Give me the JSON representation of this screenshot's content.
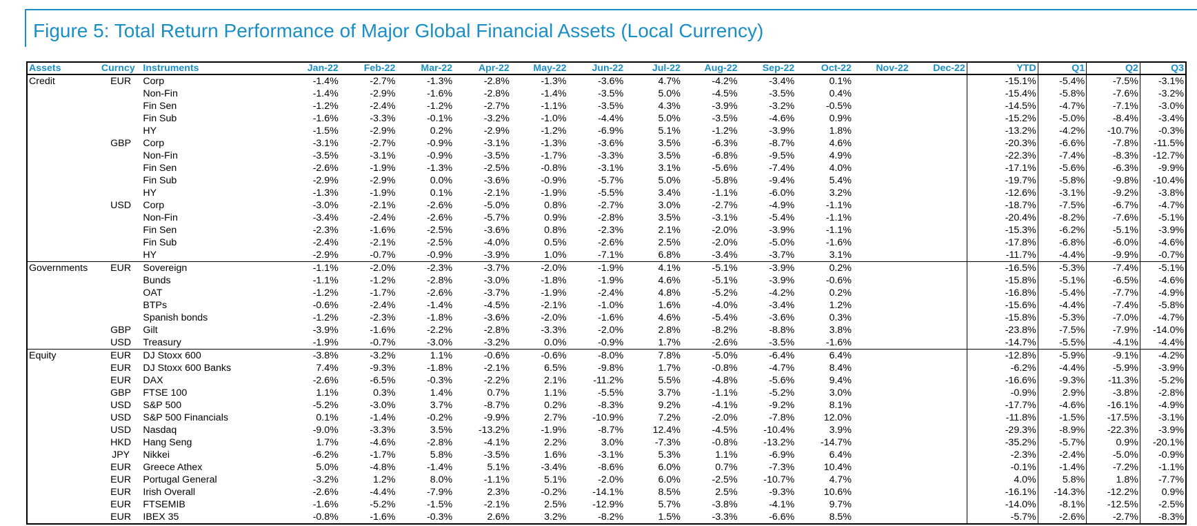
{
  "title": "Figure 5: Total Return Performance of Major Global Financial Assets (Local Currency)",
  "headers": {
    "assets": "Assets",
    "currency": "Curncy",
    "instruments": "Instruments",
    "months": [
      "Jan-22",
      "Feb-22",
      "Mar-22",
      "Apr-22",
      "May-22",
      "Jun-22",
      "Jul-22",
      "Aug-22",
      "Sep-22",
      "Oct-22",
      "Nov-22",
      "Dec-22"
    ],
    "ytd": "YTD",
    "quarters": [
      "Q1",
      "Q2",
      "Q3"
    ]
  },
  "rows": [
    {
      "asset": "Credit",
      "cur": "EUR",
      "inst": "Corp",
      "m": [
        "-1.4%",
        "-2.7%",
        "-1.3%",
        "-2.8%",
        "-1.3%",
        "-3.6%",
        "4.7%",
        "-4.2%",
        "-3.4%",
        "0.1%",
        "",
        ""
      ],
      "ytd": "-15.1%",
      "q": [
        "-5.4%",
        "-7.5%",
        "-3.1%"
      ]
    },
    {
      "asset": "",
      "cur": "",
      "inst": "Non-Fin",
      "m": [
        "-1.4%",
        "-2.9%",
        "-1.6%",
        "-2.8%",
        "-1.4%",
        "-3.5%",
        "5.0%",
        "-4.5%",
        "-3.5%",
        "0.4%",
        "",
        ""
      ],
      "ytd": "-15.4%",
      "q": [
        "-5.8%",
        "-7.6%",
        "-3.2%"
      ]
    },
    {
      "asset": "",
      "cur": "",
      "inst": "Fin Sen",
      "m": [
        "-1.2%",
        "-2.4%",
        "-1.2%",
        "-2.7%",
        "-1.1%",
        "-3.5%",
        "4.3%",
        "-3.9%",
        "-3.2%",
        "-0.5%",
        "",
        ""
      ],
      "ytd": "-14.5%",
      "q": [
        "-4.7%",
        "-7.1%",
        "-3.0%"
      ]
    },
    {
      "asset": "",
      "cur": "",
      "inst": "Fin Sub",
      "m": [
        "-1.6%",
        "-3.3%",
        "-0.1%",
        "-3.2%",
        "-1.0%",
        "-4.4%",
        "5.0%",
        "-3.5%",
        "-4.6%",
        "0.9%",
        "",
        ""
      ],
      "ytd": "-15.2%",
      "q": [
        "-5.0%",
        "-8.4%",
        "-3.4%"
      ]
    },
    {
      "asset": "",
      "cur": "",
      "inst": "HY",
      "m": [
        "-1.5%",
        "-2.9%",
        "0.2%",
        "-2.9%",
        "-1.2%",
        "-6.9%",
        "5.1%",
        "-1.2%",
        "-3.9%",
        "1.8%",
        "",
        ""
      ],
      "ytd": "-13.2%",
      "q": [
        "-4.2%",
        "-10.7%",
        "-0.3%"
      ]
    },
    {
      "asset": "",
      "cur": "GBP",
      "inst": "Corp",
      "m": [
        "-3.1%",
        "-2.7%",
        "-0.9%",
        "-3.1%",
        "-1.3%",
        "-3.6%",
        "3.5%",
        "-6.3%",
        "-8.7%",
        "4.6%",
        "",
        ""
      ],
      "ytd": "-20.3%",
      "q": [
        "-6.6%",
        "-7.8%",
        "-11.5%"
      ]
    },
    {
      "asset": "",
      "cur": "",
      "inst": "Non-Fin",
      "m": [
        "-3.5%",
        "-3.1%",
        "-0.9%",
        "-3.5%",
        "-1.7%",
        "-3.3%",
        "3.5%",
        "-6.8%",
        "-9.5%",
        "4.9%",
        "",
        ""
      ],
      "ytd": "-22.3%",
      "q": [
        "-7.4%",
        "-8.3%",
        "-12.7%"
      ]
    },
    {
      "asset": "",
      "cur": "",
      "inst": "Fin Sen",
      "m": [
        "-2.6%",
        "-1.9%",
        "-1.3%",
        "-2.5%",
        "-0.8%",
        "-3.1%",
        "3.1%",
        "-5.6%",
        "-7.4%",
        "4.0%",
        "",
        ""
      ],
      "ytd": "-17.1%",
      "q": [
        "-5.6%",
        "-6.3%",
        "-9.9%"
      ]
    },
    {
      "asset": "",
      "cur": "",
      "inst": "Fin Sub",
      "m": [
        "-2.9%",
        "-2.9%",
        "0.0%",
        "-3.6%",
        "-0.9%",
        "-5.7%",
        "5.0%",
        "-5.8%",
        "-9.4%",
        "5.4%",
        "",
        ""
      ],
      "ytd": "-19.7%",
      "q": [
        "-5.8%",
        "-9.8%",
        "-10.4%"
      ]
    },
    {
      "asset": "",
      "cur": "",
      "inst": "HY",
      "m": [
        "-1.3%",
        "-1.9%",
        "0.1%",
        "-2.1%",
        "-1.9%",
        "-5.5%",
        "3.4%",
        "-1.1%",
        "-6.0%",
        "3.2%",
        "",
        ""
      ],
      "ytd": "-12.6%",
      "q": [
        "-3.1%",
        "-9.2%",
        "-3.8%"
      ]
    },
    {
      "asset": "",
      "cur": "USD",
      "inst": "Corp",
      "m": [
        "-3.0%",
        "-2.1%",
        "-2.6%",
        "-5.0%",
        "0.8%",
        "-2.7%",
        "3.0%",
        "-2.7%",
        "-4.9%",
        "-1.1%",
        "",
        ""
      ],
      "ytd": "-18.7%",
      "q": [
        "-7.5%",
        "-6.7%",
        "-4.7%"
      ]
    },
    {
      "asset": "",
      "cur": "",
      "inst": "Non-Fin",
      "m": [
        "-3.4%",
        "-2.4%",
        "-2.6%",
        "-5.7%",
        "0.9%",
        "-2.8%",
        "3.5%",
        "-3.1%",
        "-5.4%",
        "-1.1%",
        "",
        ""
      ],
      "ytd": "-20.4%",
      "q": [
        "-8.2%",
        "-7.6%",
        "-5.1%"
      ]
    },
    {
      "asset": "",
      "cur": "",
      "inst": "Fin Sen",
      "m": [
        "-2.3%",
        "-1.6%",
        "-2.5%",
        "-3.6%",
        "0.8%",
        "-2.3%",
        "2.1%",
        "-2.0%",
        "-3.9%",
        "-1.1%",
        "",
        ""
      ],
      "ytd": "-15.3%",
      "q": [
        "-6.2%",
        "-5.1%",
        "-3.9%"
      ]
    },
    {
      "asset": "",
      "cur": "",
      "inst": "Fin Sub",
      "m": [
        "-2.4%",
        "-2.1%",
        "-2.5%",
        "-4.0%",
        "0.5%",
        "-2.6%",
        "2.5%",
        "-2.0%",
        "-5.0%",
        "-1.6%",
        "",
        ""
      ],
      "ytd": "-17.8%",
      "q": [
        "-6.8%",
        "-6.0%",
        "-4.6%"
      ]
    },
    {
      "asset": "",
      "cur": "",
      "inst": "HY",
      "m": [
        "-2.9%",
        "-0.7%",
        "-0.9%",
        "-3.9%",
        "1.0%",
        "-7.1%",
        "6.8%",
        "-3.4%",
        "-3.7%",
        "3.1%",
        "",
        ""
      ],
      "ytd": "-11.7%",
      "q": [
        "-4.4%",
        "-9.9%",
        "-0.7%"
      ],
      "end": true
    },
    {
      "asset": "Governments",
      "cur": "EUR",
      "inst": "Sovereign",
      "m": [
        "-1.1%",
        "-2.0%",
        "-2.3%",
        "-3.7%",
        "-2.0%",
        "-1.9%",
        "4.1%",
        "-5.1%",
        "-3.9%",
        "0.2%",
        "",
        ""
      ],
      "ytd": "-16.5%",
      "q": [
        "-5.3%",
        "-7.4%",
        "-5.1%"
      ]
    },
    {
      "asset": "",
      "cur": "",
      "inst": "Bunds",
      "m": [
        "-1.1%",
        "-1.2%",
        "-2.8%",
        "-3.0%",
        "-1.8%",
        "-1.9%",
        "4.6%",
        "-5.1%",
        "-3.9%",
        "-0.6%",
        "",
        ""
      ],
      "ytd": "-15.8%",
      "q": [
        "-5.1%",
        "-6.5%",
        "-4.6%"
      ]
    },
    {
      "asset": "",
      "cur": "",
      "inst": "OAT",
      "m": [
        "-1.2%",
        "-1.7%",
        "-2.6%",
        "-3.7%",
        "-1.9%",
        "-2.4%",
        "4.8%",
        "-5.2%",
        "-4.2%",
        "0.2%",
        "",
        ""
      ],
      "ytd": "-16.8%",
      "q": [
        "-5.4%",
        "-7.7%",
        "-4.9%"
      ]
    },
    {
      "asset": "",
      "cur": "",
      "inst": "BTPs",
      "m": [
        "-0.6%",
        "-2.4%",
        "-1.4%",
        "-4.5%",
        "-2.1%",
        "-1.0%",
        "1.6%",
        "-4.0%",
        "-3.4%",
        "1.2%",
        "",
        ""
      ],
      "ytd": "-15.6%",
      "q": [
        "-4.4%",
        "-7.4%",
        "-5.8%"
      ]
    },
    {
      "asset": "",
      "cur": "",
      "inst": "Spanish bonds",
      "m": [
        "-1.2%",
        "-2.3%",
        "-1.8%",
        "-3.6%",
        "-2.0%",
        "-1.6%",
        "4.6%",
        "-5.4%",
        "-3.6%",
        "0.3%",
        "",
        ""
      ],
      "ytd": "-15.8%",
      "q": [
        "-5.3%",
        "-7.0%",
        "-4.7%"
      ]
    },
    {
      "asset": "",
      "cur": "GBP",
      "inst": "Gilt",
      "m": [
        "-3.9%",
        "-1.6%",
        "-2.2%",
        "-2.8%",
        "-3.3%",
        "-2.0%",
        "2.8%",
        "-8.2%",
        "-8.8%",
        "3.8%",
        "",
        ""
      ],
      "ytd": "-23.8%",
      "q": [
        "-7.5%",
        "-7.9%",
        "-14.0%"
      ]
    },
    {
      "asset": "",
      "cur": "USD",
      "inst": "Treasury",
      "m": [
        "-1.9%",
        "-0.7%",
        "-3.0%",
        "-3.2%",
        "0.0%",
        "-0.9%",
        "1.7%",
        "-2.6%",
        "-3.5%",
        "-1.6%",
        "",
        ""
      ],
      "ytd": "-14.7%",
      "q": [
        "-5.5%",
        "-4.1%",
        "-4.4%"
      ],
      "end": true
    },
    {
      "asset": "Equity",
      "cur": "EUR",
      "inst": "DJ Stoxx 600",
      "m": [
        "-3.8%",
        "-3.2%",
        "1.1%",
        "-0.6%",
        "-0.6%",
        "-8.0%",
        "7.8%",
        "-5.0%",
        "-6.4%",
        "6.4%",
        "",
        ""
      ],
      "ytd": "-12.8%",
      "q": [
        "-5.9%",
        "-9.1%",
        "-4.2%"
      ]
    },
    {
      "asset": "",
      "cur": "EUR",
      "inst": "DJ Stoxx 600 Banks",
      "m": [
        "7.4%",
        "-9.3%",
        "-1.8%",
        "-2.1%",
        "6.5%",
        "-9.8%",
        "1.7%",
        "-0.8%",
        "-4.7%",
        "8.4%",
        "",
        ""
      ],
      "ytd": "-6.2%",
      "q": [
        "-4.4%",
        "-5.9%",
        "-3.9%"
      ]
    },
    {
      "asset": "",
      "cur": "EUR",
      "inst": "DAX",
      "m": [
        "-2.6%",
        "-6.5%",
        "-0.3%",
        "-2.2%",
        "2.1%",
        "-11.2%",
        "5.5%",
        "-4.8%",
        "-5.6%",
        "9.4%",
        "",
        ""
      ],
      "ytd": "-16.6%",
      "q": [
        "-9.3%",
        "-11.3%",
        "-5.2%"
      ]
    },
    {
      "asset": "",
      "cur": "GBP",
      "inst": "FTSE 100",
      "m": [
        "1.1%",
        "0.3%",
        "1.4%",
        "0.7%",
        "1.1%",
        "-5.5%",
        "3.7%",
        "-1.1%",
        "-5.2%",
        "3.0%",
        "",
        ""
      ],
      "ytd": "-0.9%",
      "q": [
        "2.9%",
        "-3.8%",
        "-2.8%"
      ]
    },
    {
      "asset": "",
      "cur": "USD",
      "inst": "S&P 500",
      "m": [
        "-5.2%",
        "-3.0%",
        "3.7%",
        "-8.7%",
        "0.2%",
        "-8.3%",
        "9.2%",
        "-4.1%",
        "-9.2%",
        "8.1%",
        "",
        ""
      ],
      "ytd": "-17.7%",
      "q": [
        "-4.6%",
        "-16.1%",
        "-4.9%"
      ]
    },
    {
      "asset": "",
      "cur": "USD",
      "inst": "S&P 500 Financials",
      "m": [
        "0.1%",
        "-1.4%",
        "-0.2%",
        "-9.9%",
        "2.7%",
        "-10.9%",
        "7.2%",
        "-2.0%",
        "-7.8%",
        "12.0%",
        "",
        ""
      ],
      "ytd": "-11.8%",
      "q": [
        "-1.5%",
        "-17.5%",
        "-3.1%"
      ]
    },
    {
      "asset": "",
      "cur": "USD",
      "inst": "Nasdaq",
      "m": [
        "-9.0%",
        "-3.3%",
        "3.5%",
        "-13.2%",
        "-1.9%",
        "-8.7%",
        "12.4%",
        "-4.5%",
        "-10.4%",
        "3.9%",
        "",
        ""
      ],
      "ytd": "-29.3%",
      "q": [
        "-8.9%",
        "-22.3%",
        "-3.9%"
      ]
    },
    {
      "asset": "",
      "cur": "HKD",
      "inst": "Hang Seng",
      "m": [
        "1.7%",
        "-4.6%",
        "-2.8%",
        "-4.1%",
        "2.2%",
        "3.0%",
        "-7.3%",
        "-0.8%",
        "-13.2%",
        "-14.7%",
        "",
        ""
      ],
      "ytd": "-35.2%",
      "q": [
        "-5.7%",
        "0.9%",
        "-20.1%"
      ]
    },
    {
      "asset": "",
      "cur": "JPY",
      "inst": "Nikkei",
      "m": [
        "-6.2%",
        "-1.7%",
        "5.8%",
        "-3.5%",
        "1.6%",
        "-3.1%",
        "5.3%",
        "1.1%",
        "-6.9%",
        "6.4%",
        "",
        ""
      ],
      "ytd": "-2.3%",
      "q": [
        "-2.4%",
        "-5.0%",
        "-0.9%"
      ]
    },
    {
      "asset": "",
      "cur": "EUR",
      "inst": "Greece Athex",
      "m": [
        "5.0%",
        "-4.8%",
        "-1.4%",
        "5.1%",
        "-3.4%",
        "-8.6%",
        "6.0%",
        "0.7%",
        "-7.3%",
        "10.4%",
        "",
        ""
      ],
      "ytd": "-0.1%",
      "q": [
        "-1.4%",
        "-7.2%",
        "-1.1%"
      ]
    },
    {
      "asset": "",
      "cur": "EUR",
      "inst": "Portugal General",
      "m": [
        "-3.2%",
        "1.2%",
        "8.0%",
        "-1.1%",
        "5.1%",
        "-2.0%",
        "6.0%",
        "-2.5%",
        "-10.7%",
        "4.7%",
        "",
        ""
      ],
      "ytd": "4.0%",
      "q": [
        "5.8%",
        "1.8%",
        "-7.7%"
      ]
    },
    {
      "asset": "",
      "cur": "EUR",
      "inst": "Irish Overall",
      "m": [
        "-2.6%",
        "-4.4%",
        "-7.9%",
        "2.3%",
        "-0.2%",
        "-14.1%",
        "8.5%",
        "2.5%",
        "-9.3%",
        "10.6%",
        "",
        ""
      ],
      "ytd": "-16.1%",
      "q": [
        "-14.3%",
        "-12.2%",
        "0.9%"
      ]
    },
    {
      "asset": "",
      "cur": "EUR",
      "inst": "FTSEMIB",
      "m": [
        "-1.6%",
        "-5.2%",
        "-1.5%",
        "-2.1%",
        "2.5%",
        "-12.9%",
        "5.7%",
        "-3.8%",
        "-4.1%",
        "9.7%",
        "",
        ""
      ],
      "ytd": "-14.0%",
      "q": [
        "-8.1%",
        "-12.5%",
        "-2.5%"
      ]
    },
    {
      "asset": "",
      "cur": "EUR",
      "inst": "IBEX 35",
      "m": [
        "-0.8%",
        "-1.6%",
        "-0.3%",
        "2.6%",
        "3.2%",
        "-8.2%",
        "1.5%",
        "-3.3%",
        "-6.6%",
        "8.5%",
        "",
        ""
      ],
      "ytd": "-5.7%",
      "q": [
        "-2.6%",
        "-2.7%",
        "-8.3%"
      ]
    }
  ]
}
